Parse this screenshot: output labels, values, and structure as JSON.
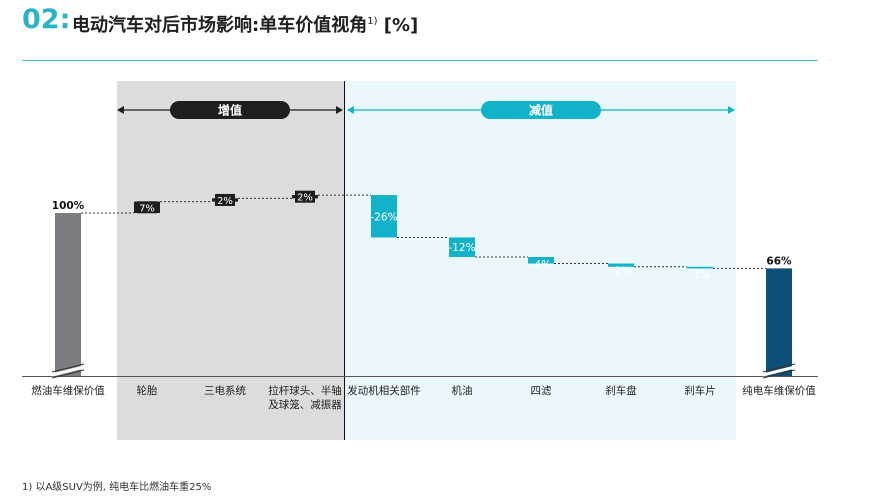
{
  "header": {
    "number": "02",
    "colon": ":",
    "title": "电动汽车对后市场影响:单车价值视角",
    "footnote_mark": "1)",
    "unit": "[%]"
  },
  "footnote": "1) 以A级SUV为例, 纯电车比燃油车重25%",
  "colors": {
    "accent": "#2ab3cb",
    "increase_bg": "#dcdcdc",
    "decrease_bg": "#eaf8fb",
    "dark_bar": "#1e1e1e",
    "teal_bar": "#12b2c8",
    "start_bar": "#7b7d80",
    "end_bar": "#0d4f77"
  },
  "chart_data": {
    "type": "waterfall",
    "title": "电动汽车对后市场影响:单车价值视角",
    "unit": "%",
    "groups": [
      {
        "label": "增值",
        "categories": [
          "轮胎",
          "三电系统",
          "拉杆球头、半轴及球笼、减振器"
        ]
      },
      {
        "label": "减值",
        "categories": [
          "发动机相关部件",
          "机油",
          "四滤",
          "刹车盘",
          "刹车片"
        ]
      }
    ],
    "categories": [
      "燃油车维保价值",
      "轮胎",
      "三电系统",
      "拉杆球头、半轴及球笼、减振器",
      "发动机相关部件",
      "机油",
      "四滤",
      "刹车盘",
      "刹车片",
      "纯电车维保价值"
    ],
    "category_lines": [
      [
        "燃油车维保价值"
      ],
      [
        "轮胎"
      ],
      [
        "三电系统"
      ],
      [
        "拉杆球头、半轴",
        "及球笼、减振器"
      ],
      [
        "发动机相关部件"
      ],
      [
        "机油"
      ],
      [
        "四滤"
      ],
      [
        "刹车盘"
      ],
      [
        "刹车片"
      ],
      [
        "纯电车维保价值"
      ]
    ],
    "values": [
      100,
      7,
      2,
      2,
      -26,
      -12,
      -4,
      -2,
      -1,
      66
    ],
    "kinds": [
      "total",
      "delta",
      "delta",
      "delta",
      "delta",
      "delta",
      "delta",
      "delta",
      "delta",
      "total"
    ],
    "data_labels": [
      "100%",
      "7%",
      "2%",
      "2%",
      "-26%",
      "-12%",
      "-4%",
      "-2%",
      "-1%",
      "66%"
    ]
  }
}
